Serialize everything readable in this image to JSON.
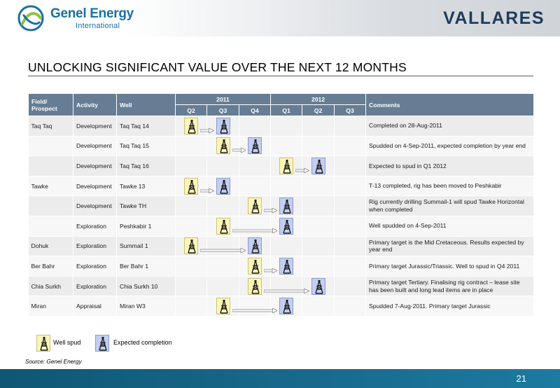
{
  "header": {
    "genel_logo_word": "Genel Energy",
    "genel_logo_sub": "International",
    "vallares_logo": "VALLARES"
  },
  "title": "UNLOCKING SIGNIFICANT VALUE OVER THE NEXT 12 MONTHS",
  "table": {
    "headers": {
      "field": "Field/ Prospect",
      "activity": "Activity",
      "well": "Well",
      "year_2011": "2011",
      "year_2012": "2012",
      "comments": "Comments",
      "quarters": [
        "Q2",
        "Q3",
        "Q4",
        "Q1",
        "Q2",
        "Q3"
      ]
    },
    "rows": [
      {
        "field": "Taq Taq",
        "activity": "Development",
        "well": "Taq Taq 14",
        "comment": "Completed on 28-Aug-2011",
        "spud": "2011-Q2",
        "completion": "2011-Q3"
      },
      {
        "field": "",
        "activity": "Development",
        "well": "Taq Taq 15",
        "comment": "Spudded on 4-Sep-2011, expected completion by year end",
        "spud": "2011-Q3",
        "completion": "2011-Q4"
      },
      {
        "field": "",
        "activity": "Development",
        "well": "Taq Taq 16",
        "comment": "Expected to spud in Q1 2012",
        "spud": "2012-Q1",
        "completion": "2012-Q2"
      },
      {
        "field": "Tawke",
        "activity": "Development",
        "well": " Tawke 13",
        "comment": "T-13 completed, rig has been moved to Peshkabir",
        "spud": "2011-Q2",
        "completion": "2011-Q3"
      },
      {
        "field": "",
        "activity": "Development",
        "well": "Tawke TH",
        "comment": "Rig currently drilling Summail-1 will spud Tawke Horizontal when completed",
        "spud": "2011-Q4",
        "completion": "2012-Q1"
      },
      {
        "field": "",
        "activity": "Exploration",
        "well": "Peshkabir 1",
        "comment": "Well spudded on 4-Sep-2011",
        "spud": "2011-Q3",
        "completion": "2012-Q1"
      },
      {
        "field": "Dohuk",
        "activity": "Exploration",
        "well": " Summail 1",
        "comment": "Primary target is the Mid Cretaceous. Results expected by year end",
        "spud": "2011-Q2",
        "completion": "2011-Q4"
      },
      {
        "field": "Ber Bahr",
        "activity": "Exploration",
        "well": "Ber Bahr 1",
        "comment": "Primary target Jurassic/Triassic. Well to spud in Q4 2011",
        "spud": "2011-Q4",
        "completion": "2012-Q1"
      },
      {
        "field": "Chia Surkh",
        "activity": "Exploration",
        "well": "Chia Surkh 10",
        "comment": "Primary target Tertiary. Finalising rig contract – lease site has been built and long lead items are in place",
        "spud": "2011-Q4",
        "completion": "2012-Q2"
      },
      {
        "field": "Miran",
        "activity": "Appraisal",
        "well": "Miran W3",
        "comment": "Spudded 7-Aug-2011. Primary target Jurassic",
        "spud": "2011-Q3",
        "completion": "2012-Q1"
      }
    ]
  },
  "legend": {
    "spud_label": "Well spud",
    "completion_label": "Expected completion"
  },
  "source": "Source: Genel Energy",
  "page_number": "21",
  "colors": {
    "header_blue": "#667d94",
    "spud_fill": "#fbf6b8",
    "completion_fill": "#c3cef0",
    "footer": "#17688a",
    "genel_blue": "#1b6fa2",
    "vallares_navy": "#1e3d5c"
  },
  "icons": {
    "spud": "drilling-rig-icon",
    "completion": "drilling-rig-icon",
    "arrow": "arrow-right-icon"
  }
}
